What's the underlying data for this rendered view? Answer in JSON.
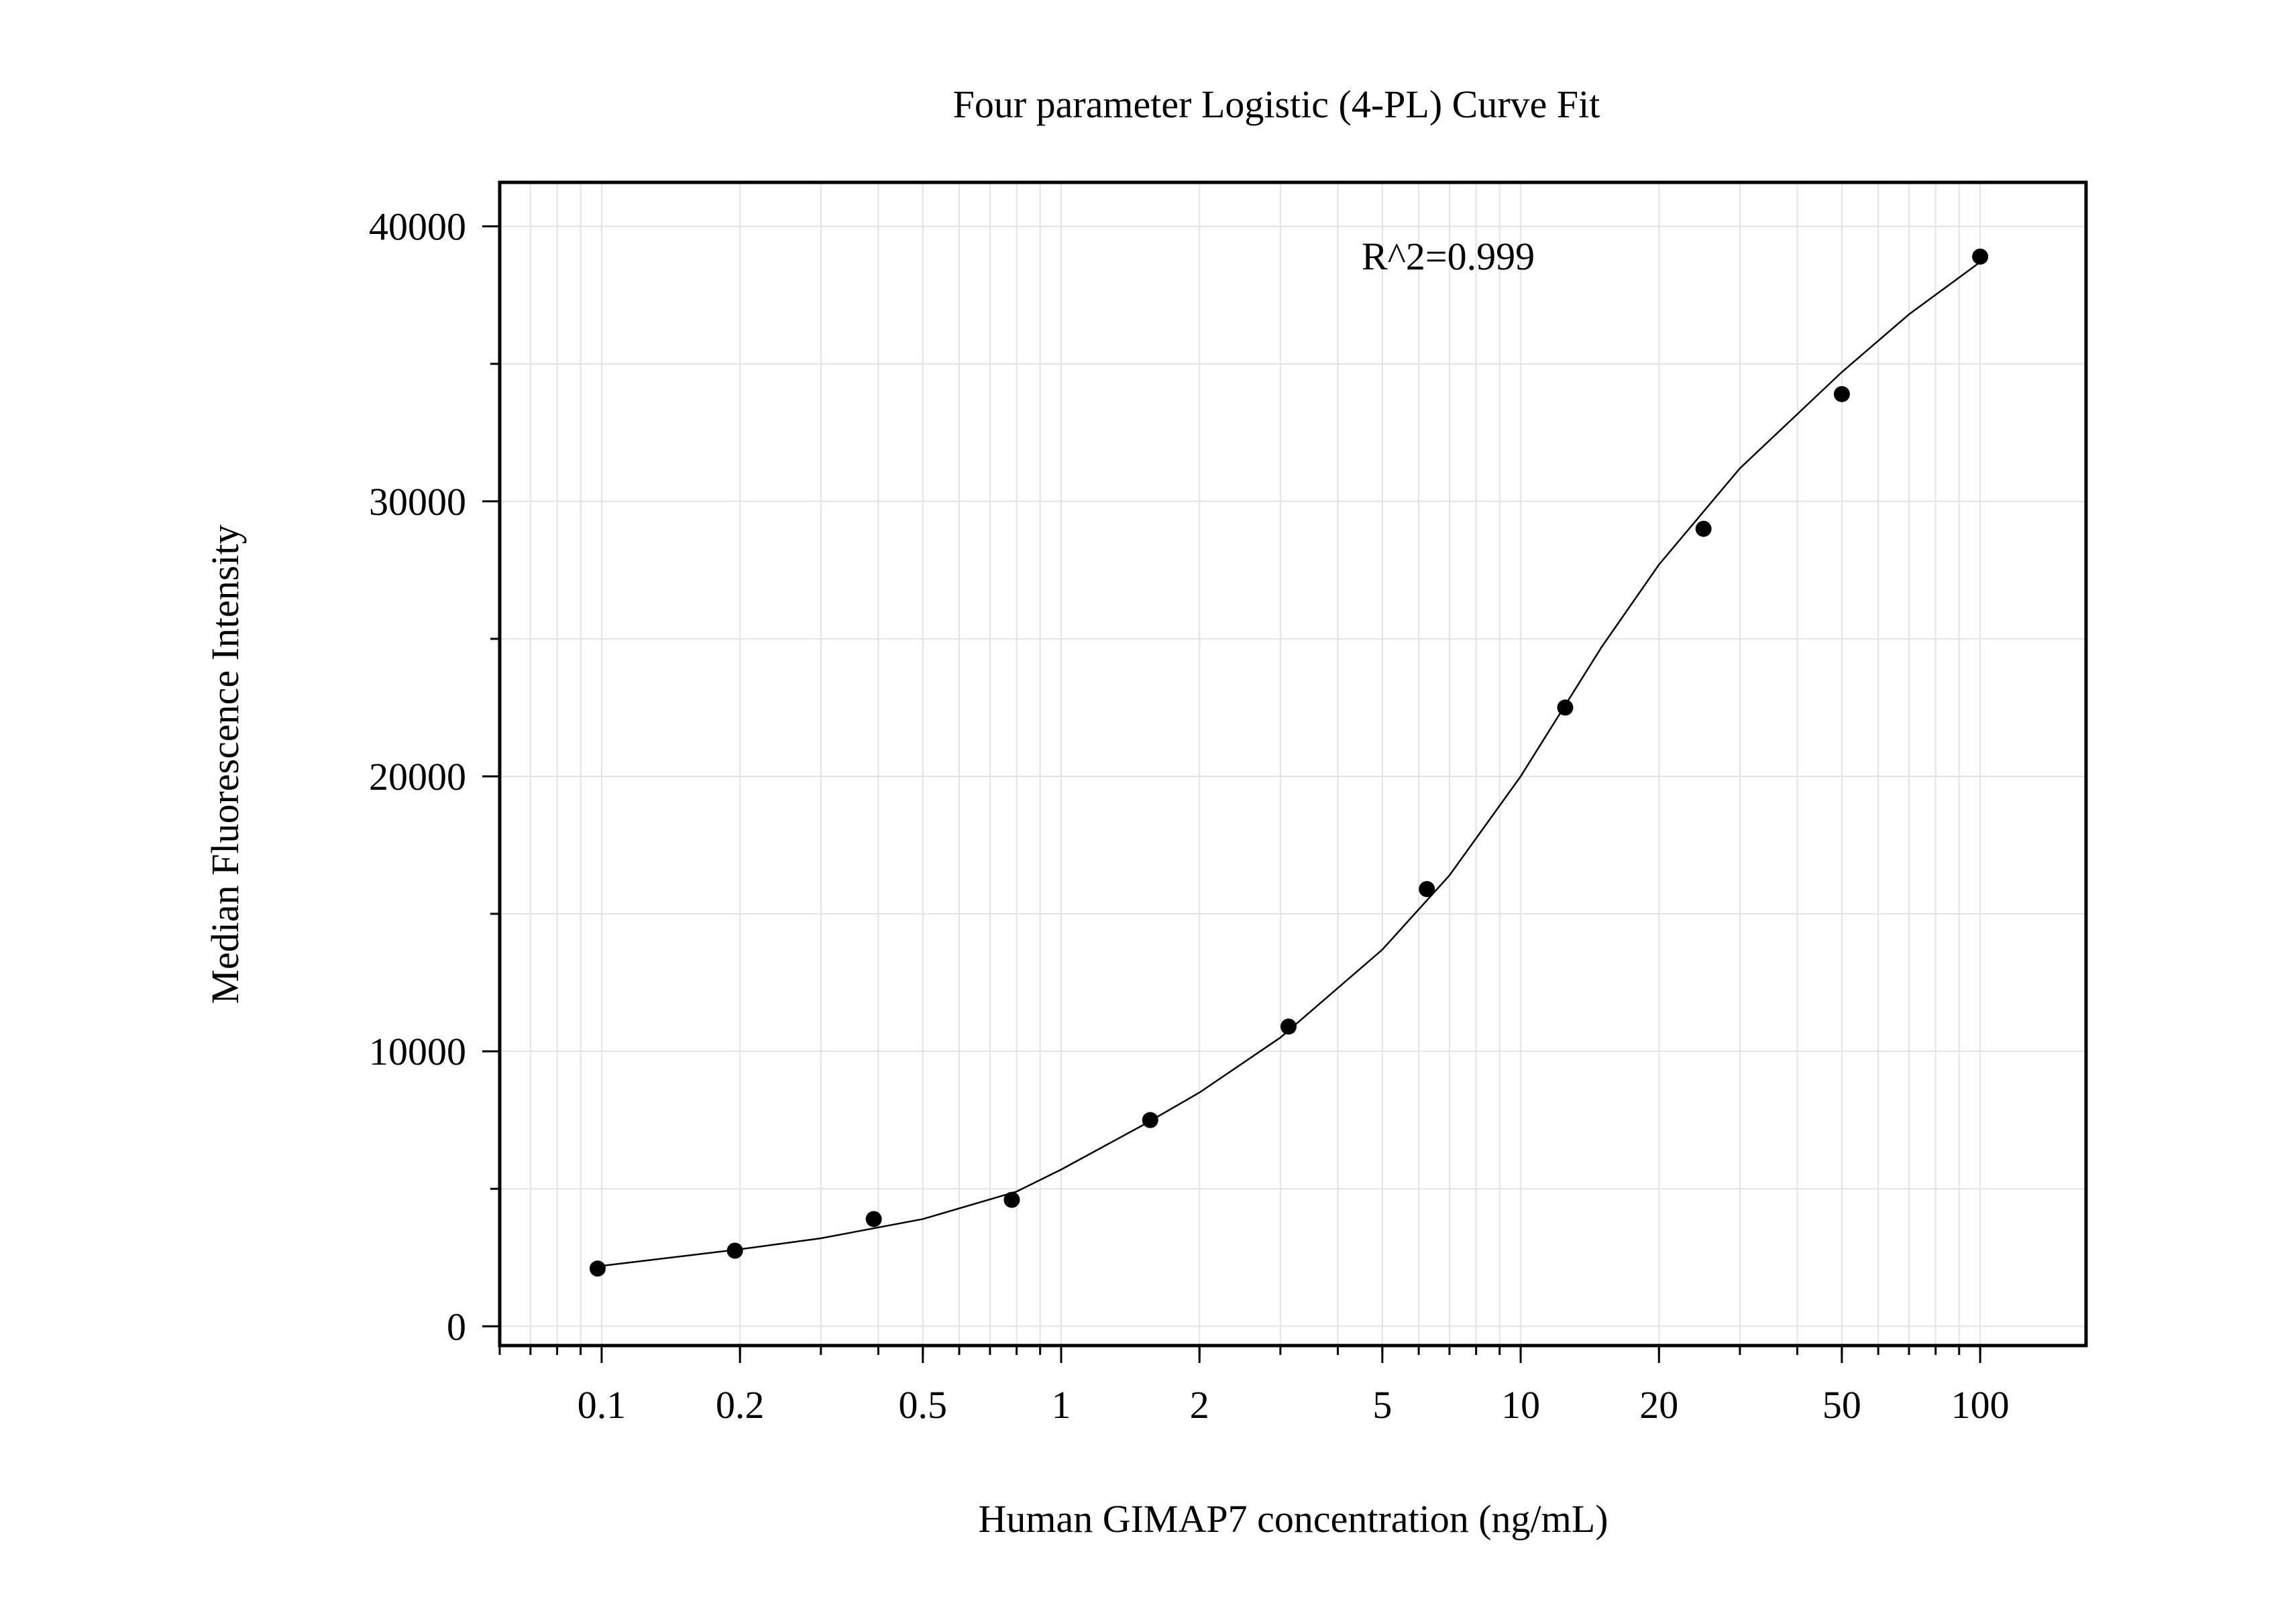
{
  "chart_data": {
    "type": "scatter",
    "title": "Four parameter Logistic (4-PL) Curve Fit",
    "xlabel": "Human GIMAP7 concentration (ng/mL)",
    "ylabel": "Median Fluorescence Intensity",
    "annotation": "R^2=0.999",
    "x_scale": "log",
    "xlim": [
      0.06,
      170
    ],
    "ylim": [
      -700,
      41600
    ],
    "x_ticks": [
      0.1,
      0.2,
      0.5,
      1,
      2,
      5,
      10,
      20,
      50,
      100
    ],
    "x_tick_labels": [
      "0.1",
      "0.2",
      "0.5",
      "1",
      "2",
      "5",
      "10",
      "20",
      "50",
      "100"
    ],
    "y_ticks": [
      0,
      10000,
      20000,
      30000,
      40000
    ],
    "y_tick_labels": [
      "0",
      "10000",
      "20000",
      "30000",
      "40000"
    ],
    "grid": true,
    "series": [
      {
        "kind": "points",
        "x": [
          0.098,
          0.195,
          0.391,
          0.781,
          1.5625,
          3.125,
          6.25,
          12.5,
          25,
          50,
          100
        ],
        "y": [
          2100,
          2750,
          3900,
          4600,
          7500,
          10900,
          15900,
          22500,
          29000,
          33900,
          38900
        ]
      },
      {
        "kind": "fit",
        "x": [
          0.1,
          0.2,
          0.3,
          0.5,
          0.8,
          1.0,
          1.5,
          2.0,
          3.0,
          5.0,
          7.0,
          10.0,
          15.0,
          20.0,
          30.0,
          50.0,
          70.0,
          100.0
        ],
        "y": [
          2200,
          2800,
          3200,
          3900,
          4900,
          5700,
          7300,
          8500,
          10500,
          13700,
          16400,
          20000,
          24700,
          27700,
          31200,
          34700,
          36800,
          38700
        ]
      }
    ],
    "colors": {
      "points": "#000000",
      "fit": "#000000",
      "grid": "#e3e3e3",
      "frame": "#000000"
    }
  }
}
